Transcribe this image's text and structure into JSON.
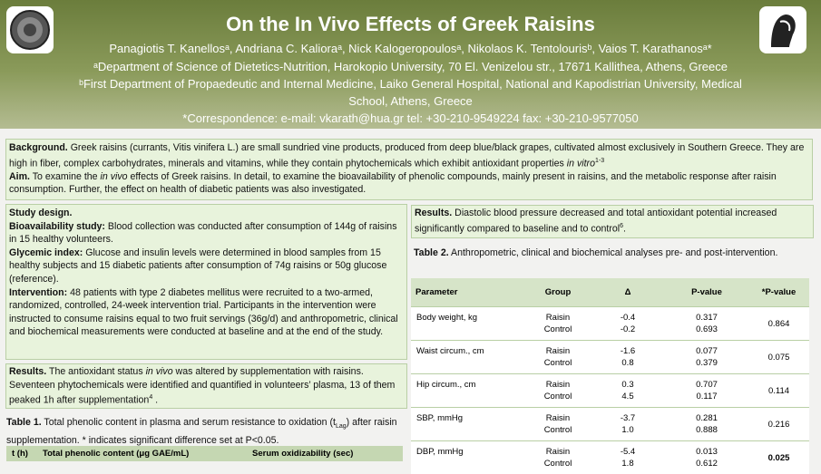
{
  "header": {
    "title": "On the In Vivo Effects of Greek Raisins",
    "authors": "Panagiotis T. Kanellosᵃ, Andriana C. Kalioraᵃ, Nick Kalogeropoulosᵃ, Nikolaos K. Tentolourisᵇ, Vaios T. Karathanosᵃ*",
    "affil_a": "ᵃDepartment of Science of Dietetics-Nutrition, Harokopio University, 70 El. Venizelou str., 17671 Kallithea, Athens, Greece",
    "affil_b1": "ᵇFirst Department of Propaedeutic and Internal Medicine, Laiko General Hospital, National and Kapodistrian University, Medical",
    "affil_b2": "School, Athens, Greece",
    "correspondence": "*Correspondence: e-mail: vkarath@hua.gr tel: +30-210-9549224 fax: +30-210-9577050"
  },
  "background": {
    "label": "Background.",
    "text1": " Greek raisins (currants, Vitis vinifera L.) are small sundried vine products, produced from deep blue/black grapes, cultivated almost exclusively in Southern Greece. They are high in fiber, complex carbohydrates, minerals and vitamins, while they contain phytochemicals which exhibit antioxidant properties ",
    "in_vitro": "in vitro",
    "ref": "1-3",
    "aim_label": "Aim.",
    "aim1": " To examine the ",
    "in_vivo": "in vivo",
    "aim2": " effects of Greek raisins. In detail, to examine the bioavailability of phenolic compounds, mainly present in raisins, and the metabolic response after raisin consumption. Further, the effect on health of diabetic patients was also investigated."
  },
  "study": {
    "title": "Study design.",
    "bio_label": "Bioavailability study:",
    "bio_text": " Blood collection was conducted after consumption of 144g of raisins in 15 healthy volunteers.",
    "gi_label": "Glycemic index:",
    "gi_text": " Glucose and insulin levels were determined in blood samples from 15 healthy subjects and 15 diabetic patients after consumption of 74g raisins or 50g glucose (reference).",
    "int_label": "Intervention:",
    "int_text": " 48 patients with type 2 diabetes mellitus  were recruited to a two-armed, randomized, controlled, 24-week intervention trial. Participants in the intervention were instructed to consume raisins equal to two fruit servings (36g/d) and anthropometric, clinical and biochemical measurements were conducted at baseline and at the end of the study."
  },
  "results_left": {
    "label": "Results.",
    "t1": " The antioxidant status ",
    "in_vivo": "in vivo",
    "t2": " was altered by supplementation with raisins. Seventeen phytochemicals were identified and quantified in volunteers’ plasma, 13 of them peaked 1h after supplementation",
    "ref": "4",
    "t3": " ."
  },
  "table1": {
    "cap_label": "Table  1.",
    "cap_text": " Total phenolic content in plasma and serum resistance to oxidation (t",
    "cap_sub": "Lag",
    "cap_text2": ") after raisin supplementation. * indicates significant difference set at P<0.05.",
    "headers": [
      "t (h)",
      "Total phenolic content  (μg GAE/mL)",
      "Serum oxidizability (sec)"
    ]
  },
  "results_right": {
    "label": "Results.",
    "text": " Diastolic blood pressure decreased and total antioxidant potential increased significantly compared to baseline and to control",
    "ref": "6",
    "end": "."
  },
  "table2": {
    "cap_label": "Table  2.",
    "cap_text": " Anthropometric, clinical and biochemical analyses  pre- and  post-intervention.",
    "headers": [
      "Parameter",
      "Group",
      "Δ",
      "P-value",
      "*P-value"
    ],
    "rows": [
      {
        "param": "Body weight, kg",
        "g1": "Raisin",
        "g2": "Control",
        "d1": "-0.4",
        "d2": "-0.2",
        "p1": "0.317",
        "p2": "0.693",
        "sp": "0.864",
        "bold": false
      },
      {
        "param": "Waist circum., cm",
        "g1": "Raisin",
        "g2": "Control",
        "d1": "-1.6",
        "d2": "0.8",
        "p1": "0.077",
        "p2": "0.379",
        "sp": "0.075",
        "bold": false
      },
      {
        "param": "Hip circum., cm",
        "g1": "Raisin",
        "g2": "Control",
        "d1": "0.3",
        "d2": "4.5",
        "p1": "0.707",
        "p2": "0.117",
        "sp": "0.114",
        "bold": false
      },
      {
        "param": "SBP, mmHg",
        "g1": "Raisin",
        "g2": "Control",
        "d1": "-3.7",
        "d2": "1.0",
        "p1": "0.281",
        "p2": "0.888",
        "sp": "0.216",
        "bold": false
      },
      {
        "param": "DBP, mmHg",
        "g1": "Raisin",
        "g2": "Control",
        "d1": "-5.4",
        "d2": "1.8",
        "p1": "0.013",
        "p2": "0.612",
        "sp": "0.025",
        "bold": true
      }
    ]
  }
}
